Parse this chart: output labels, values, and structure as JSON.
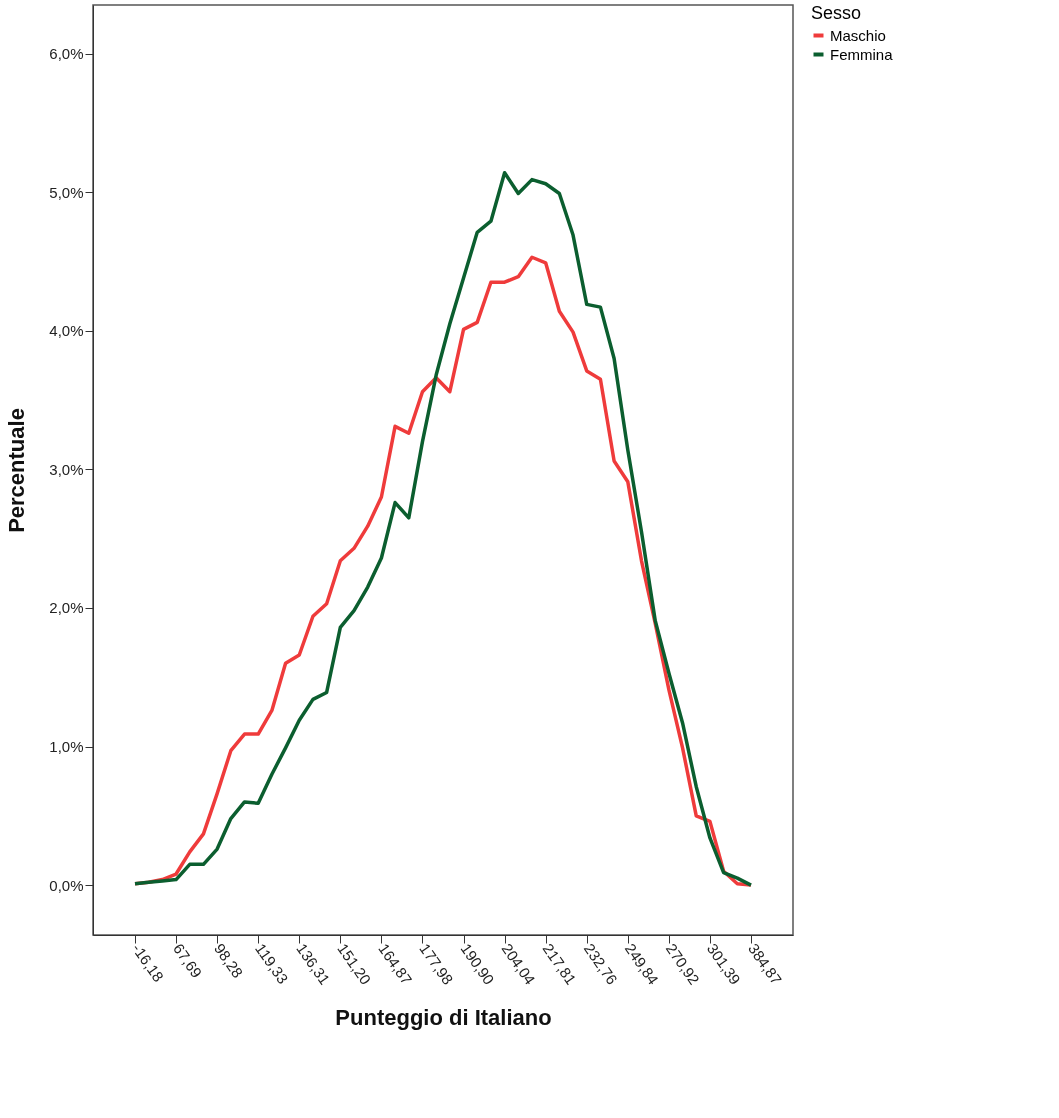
{
  "chart_data": {
    "type": "line",
    "xlabel": "Punteggio di Italiano",
    "ylabel": "Percentuale",
    "legend_title": "Sesso",
    "legend": "top right",
    "grid": false,
    "categories": [
      "-16,18",
      null,
      null,
      "67,69",
      null,
      null,
      "98,28",
      null,
      null,
      "119,33",
      null,
      null,
      "136,31",
      null,
      null,
      "151,20",
      null,
      null,
      "164,87",
      null,
      null,
      "177,98",
      null,
      null,
      "190,90",
      null,
      null,
      "204,04",
      null,
      null,
      "217,81",
      null,
      null,
      "232,76",
      null,
      null,
      "249,84",
      null,
      null,
      "270,92",
      null,
      null,
      "301,39",
      null,
      null,
      "384,87"
    ],
    "ylim": [
      -0.36,
      6.35
    ],
    "yticks": [
      {
        "value": 0,
        "label": "0,0%"
      },
      {
        "value": 1,
        "label": "1,0%"
      },
      {
        "value": 2,
        "label": "2,0%"
      },
      {
        "value": 3,
        "label": "3,0%"
      },
      {
        "value": 4,
        "label": "4,0%"
      },
      {
        "value": 5,
        "label": "5,0%"
      },
      {
        "value": 6,
        "label": "6,0%"
      }
    ],
    "series": [
      {
        "name": "Maschio",
        "color": "#ef3b3b",
        "values": [
          0.01,
          0.02,
          0.04,
          0.08,
          0.24,
          0.37,
          0.66,
          0.97,
          1.09,
          1.09,
          1.26,
          1.6,
          1.66,
          1.94,
          2.03,
          2.34,
          2.43,
          2.59,
          2.8,
          3.31,
          3.26,
          3.56,
          3.66,
          3.56,
          4.01,
          4.06,
          4.35,
          4.35,
          4.39,
          4.53,
          4.49,
          4.14,
          3.99,
          3.71,
          3.65,
          3.06,
          2.91,
          2.34,
          1.89,
          1.41,
          0.99,
          0.5,
          0.46,
          0.1,
          0.01,
          0.0
        ]
      },
      {
        "name": "Femmina",
        "color": "#0b5e2f",
        "values": [
          0.01,
          0.02,
          0.03,
          0.04,
          0.15,
          0.15,
          0.26,
          0.48,
          0.6,
          0.59,
          0.8,
          0.99,
          1.19,
          1.34,
          1.39,
          1.86,
          1.98,
          2.15,
          2.36,
          2.76,
          2.65,
          3.2,
          3.68,
          4.05,
          4.38,
          4.71,
          4.79,
          5.14,
          4.99,
          5.09,
          5.06,
          4.99,
          4.69,
          4.19,
          4.17,
          3.8,
          3.14,
          2.55,
          1.91,
          1.53,
          1.17,
          0.71,
          0.34,
          0.09,
          0.05,
          0.0
        ]
      }
    ]
  }
}
